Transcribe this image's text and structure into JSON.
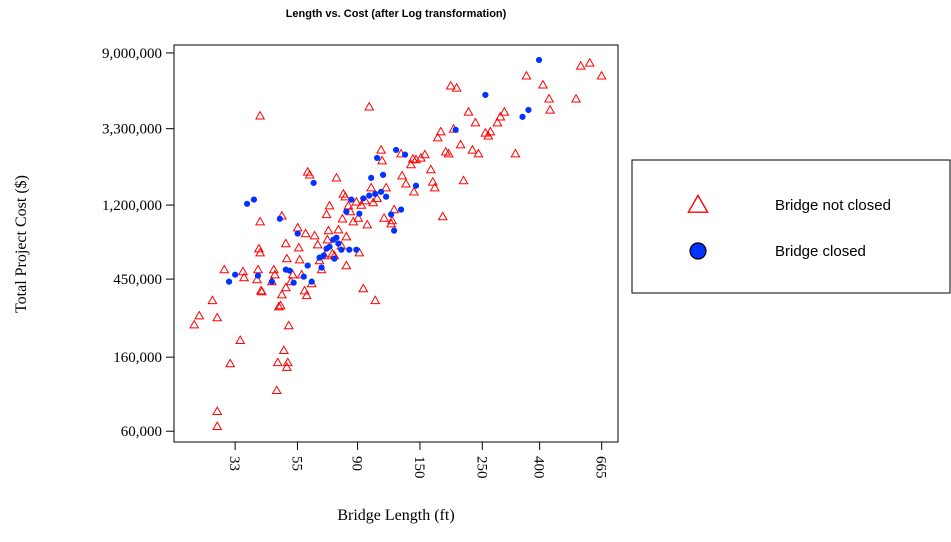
{
  "chart_data": {
    "type": "scatter",
    "title": "Length vs. Cost (after Log transformation)",
    "x_label": "Bridge Length (ft)",
    "y_label": "Total Project Cost ($)",
    "xscale": "log",
    "yscale": "log",
    "xlim": [
      20,
      760
    ],
    "ylim": [
      52000,
      10000000
    ],
    "xticks": [
      33,
      55,
      90,
      150,
      250,
      400,
      665
    ],
    "yticks": [
      {
        "value": 60000,
        "label": "60,000"
      },
      {
        "value": 160000,
        "label": "160,000"
      },
      {
        "value": 450000,
        "label": "450,000"
      },
      {
        "value": 1200000,
        "label": "1,200,000"
      },
      {
        "value": 3300000,
        "label": "3,300,000"
      },
      {
        "value": 9000000,
        "label": "9,000,000"
      }
    ],
    "legend": "right",
    "series": [
      {
        "name": "Bridge not closed",
        "color": "#ff0000",
        "marker": "triangle",
        "x": [
          23.6,
          24.6,
          27.4,
          28.5,
          28.5,
          28.5,
          30.2,
          31.7,
          34.4,
          35.2,
          35.5,
          39.5,
          39.8,
          40.5,
          40.5,
          40.1,
          40.5,
          40.8,
          41.1,
          44.6,
          45.3,
          45.7,
          46.8,
          46.4,
          47.2,
          47.9,
          48.4,
          48.4,
          49.2,
          50,
          50,
          50.4,
          50.4,
          50.8,
          51.2,
          52.1,
          52.9,
          55.1,
          55.6,
          56,
          56.9,
          58.3,
          58.8,
          59.3,
          59.8,
          60.8,
          61.8,
          63.3,
          64.9,
          65.9,
          67,
          68.6,
          69.8,
          70.3,
          70.9,
          71.5,
          73.2,
          74.4,
          75.7,
          76.9,
          78.8,
          79.5,
          80.1,
          81.4,
          82.1,
          82.1,
          83.5,
          84.8,
          86.9,
          89.1,
          90.5,
          91.3,
          92.8,
          94.3,
          95.8,
          97.4,
          99,
          100.6,
          102.3,
          104,
          105.6,
          109.1,
          110,
          111.8,
          113.7,
          118.5,
          119.4,
          121.4,
          128.5,
          129.6,
          133.8,
          139.4,
          141.6,
          142.8,
          145.2,
          151.2,
          156.2,
          164,
          166.7,
          169.4,
          173.6,
          177.9,
          180.8,
          185.3,
          189.9,
          193,
          197.7,
          202.6,
          209.3,
          214.4,
          223.3,
          230.6,
          236.3,
          242.2,
          256.4,
          262.7,
          267.1,
          283,
          289.9,
          299.5,
          328,
          359,
          411,
          432,
          435.6,
          539,
          560,
          603,
          664
        ],
        "values": [
          246000,
          277000,
          339000,
          270000,
          78000,
          64000,
          510000,
          147000,
          200000,
          497000,
          459000,
          447000,
          510000,
          3910000,
          963000,
          673000,
          638000,
          386000,
          381000,
          435000,
          510000,
          477000,
          149000,
          103000,
          312000,
          317000,
          366000,
          1040000,
          175000,
          402000,
          720000,
          590000,
          140000,
          149000,
          243000,
          435000,
          477000,
          889000,
          682000,
          582000,
          477000,
          386000,
          822000,
          362000,
          1860000,
          1790000,
          424000,
          800000,
          710000,
          575000,
          510000,
          614000,
          1060000,
          758000,
          855000,
          1190000,
          630000,
          614000,
          1720000,
          866000,
          700000,
          1000000,
          1390000,
          1340000,
          789000,
          538000,
          1190000,
          1100000,
          963000,
          1250000,
          1010000,
          638000,
          1200000,
          397000,
          1270000,
          925000,
          4410000,
          1510000,
          1240000,
          339000,
          1310000,
          2490000,
          2160000,
          1010000,
          1510000,
          937000,
          976000,
          1130000,
          2370000,
          1770000,
          1590000,
          2050000,
          2210000,
          1430000,
          2190000,
          2240000,
          2340000,
          1920000,
          1630000,
          1510000,
          2930000,
          3170000,
          1030000,
          2430000,
          2370000,
          5820000,
          3290000,
          5660000,
          2670000,
          1660000,
          4120000,
          2490000,
          3570000,
          2370000,
          3120000,
          3000000,
          3170000,
          3570000,
          3860000,
          4120000,
          2370000,
          6640000,
          5900000,
          4900000,
          4230000,
          4900000,
          7580000,
          7880000,
          6640000
        ]
      },
      {
        "name": "Bridge closed",
        "color": "#0033ff",
        "marker": "circle",
        "x": [
          31.4,
          33,
          36.4,
          38.5,
          39.8,
          44.6,
          47.6,
          50,
          51.6,
          53.3,
          55.1,
          57.9,
          59.8,
          61.8,
          62.8,
          65.9,
          67,
          68.1,
          69.8,
          71.5,
          73.8,
          74.4,
          75.7,
          76.9,
          78.8,
          82.1,
          84.1,
          85.5,
          89.1,
          91.3,
          94.3,
          99,
          100.6,
          104,
          105.6,
          109.1,
          110.9,
          113.7,
          118.5,
          121.4,
          123.4,
          128.5,
          132.8,
          145.2,
          201,
          256.4,
          347.6,
          365,
          398
        ],
        "values": [
          435000,
          477000,
          1220000,
          1290000,
          471000,
          435000,
          1000000,
          510000,
          503000,
          429000,
          822000,
          465000,
          538000,
          435000,
          1610000,
          598000,
          524000,
          614000,
          673000,
          691000,
          758000,
          590000,
          779000,
          720000,
          664000,
          1100000,
          664000,
          1290000,
          664000,
          1070000,
          1310000,
          1360000,
          1720000,
          1390000,
          2240000,
          1430000,
          1790000,
          1340000,
          1060000,
          855000,
          2490000,
          1130000,
          2340000,
          1550000,
          3250000,
          5160000,
          3860000,
          4230000,
          8200000
        ]
      }
    ]
  }
}
